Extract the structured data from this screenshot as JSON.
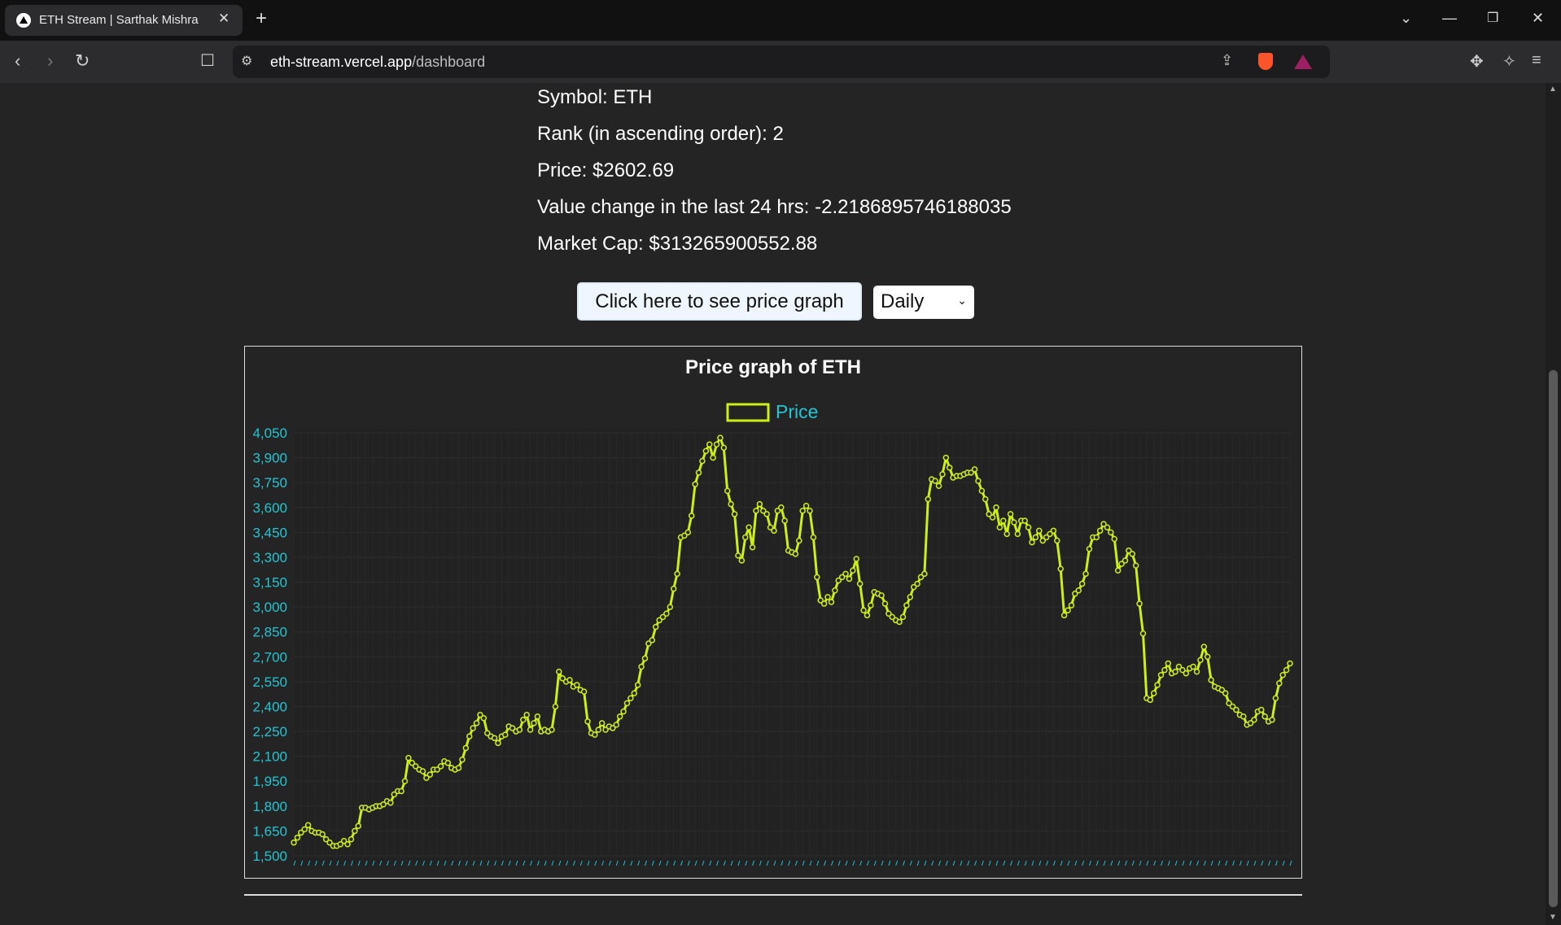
{
  "browser": {
    "tab_title": "ETH Stream | Sarthak Mishra",
    "url_host": "eth-stream.vercel.app",
    "url_path": "/dashboard"
  },
  "info": {
    "symbol": "Symbol: ETH",
    "rank": "Rank (in ascending order): 2",
    "price": "Price: $2602.69",
    "change": "Value change in the last 24 hrs: -2.2186895746188035",
    "market_cap": "Market Cap: $313265900552.88"
  },
  "controls": {
    "graph_button_label": "Click here to see price graph",
    "interval_selected": "Daily"
  },
  "colors": {
    "line": "#ccf016",
    "tick": "#22c5d3",
    "grid": "#2d2d2d"
  },
  "chart_data": {
    "type": "line",
    "title": "Price graph of ETH",
    "legend": "top-center",
    "grid": true,
    "ylim": [
      1500,
      4050
    ],
    "yticks": [
      "4,050",
      "3,900",
      "3,750",
      "3,600",
      "3,450",
      "3,300",
      "3,150",
      "3,000",
      "2,850",
      "2,700",
      "2,550",
      "2,400",
      "2,250",
      "2,100",
      "1,950",
      "1,800",
      "1,650",
      "1,500"
    ],
    "series": [
      {
        "name": "Price",
        "values": [
          1580,
          1610,
          1640,
          1660,
          1685,
          1650,
          1640,
          1640,
          1630,
          1600,
          1580,
          1560,
          1560,
          1570,
          1590,
          1570,
          1600,
          1650,
          1680,
          1790,
          1790,
          1780,
          1790,
          1800,
          1800,
          1810,
          1830,
          1820,
          1870,
          1890,
          1890,
          1950,
          2090,
          2060,
          2040,
          2020,
          2010,
          1970,
          1990,
          2020,
          2020,
          2040,
          2070,
          2060,
          2030,
          2020,
          2030,
          2080,
          2150,
          2220,
          2270,
          2300,
          2350,
          2330,
          2240,
          2220,
          2210,
          2180,
          2220,
          2230,
          2280,
          2270,
          2250,
          2260,
          2320,
          2350,
          2260,
          2300,
          2340,
          2250,
          2260,
          2250,
          2260,
          2400,
          2610,
          2570,
          2550,
          2560,
          2520,
          2530,
          2500,
          2490,
          2310,
          2240,
          2230,
          2260,
          2300,
          2260,
          2280,
          2270,
          2290,
          2340,
          2370,
          2420,
          2450,
          2480,
          2530,
          2640,
          2690,
          2780,
          2800,
          2880,
          2920,
          2940,
          2960,
          3000,
          3110,
          3200,
          3420,
          3430,
          3450,
          3550,
          3740,
          3810,
          3880,
          3940,
          3980,
          3900,
          3980,
          4020,
          3960,
          3700,
          3620,
          3560,
          3310,
          3280,
          3420,
          3480,
          3360,
          3580,
          3620,
          3580,
          3560,
          3480,
          3460,
          3580,
          3600,
          3520,
          3340,
          3330,
          3320,
          3400,
          3580,
          3610,
          3580,
          3420,
          3180,
          3040,
          3020,
          3060,
          3030,
          3100,
          3160,
          3180,
          3200,
          3170,
          3220,
          3290,
          3140,
          2980,
          2950,
          3010,
          3090,
          3080,
          3070,
          3020,
          2960,
          2940,
          2920,
          2910,
          2940,
          3010,
          3060,
          3120,
          3140,
          3180,
          3200,
          3650,
          3770,
          3760,
          3730,
          3800,
          3900,
          3840,
          3780,
          3790,
          3790,
          3800,
          3810,
          3810,
          3830,
          3760,
          3700,
          3650,
          3560,
          3540,
          3600,
          3480,
          3520,
          3440,
          3560,
          3510,
          3440,
          3520,
          3520,
          3480,
          3390,
          3420,
          3460,
          3400,
          3420,
          3440,
          3460,
          3400,
          3230,
          2950,
          2980,
          3010,
          3080,
          3100,
          3140,
          3200,
          3350,
          3420,
          3420,
          3460,
          3500,
          3480,
          3450,
          3410,
          3220,
          3260,
          3280,
          3340,
          3320,
          3250,
          3020,
          2840,
          2450,
          2440,
          2480,
          2530,
          2590,
          2620,
          2660,
          2600,
          2610,
          2640,
          2620,
          2600,
          2630,
          2640,
          2610,
          2680,
          2760,
          2700,
          2560,
          2520,
          2510,
          2500,
          2480,
          2420,
          2400,
          2380,
          2350,
          2340,
          2290,
          2300,
          2320,
          2370,
          2380,
          2340,
          2310,
          2320,
          2450,
          2540,
          2590,
          2620,
          2660
        ]
      }
    ]
  }
}
